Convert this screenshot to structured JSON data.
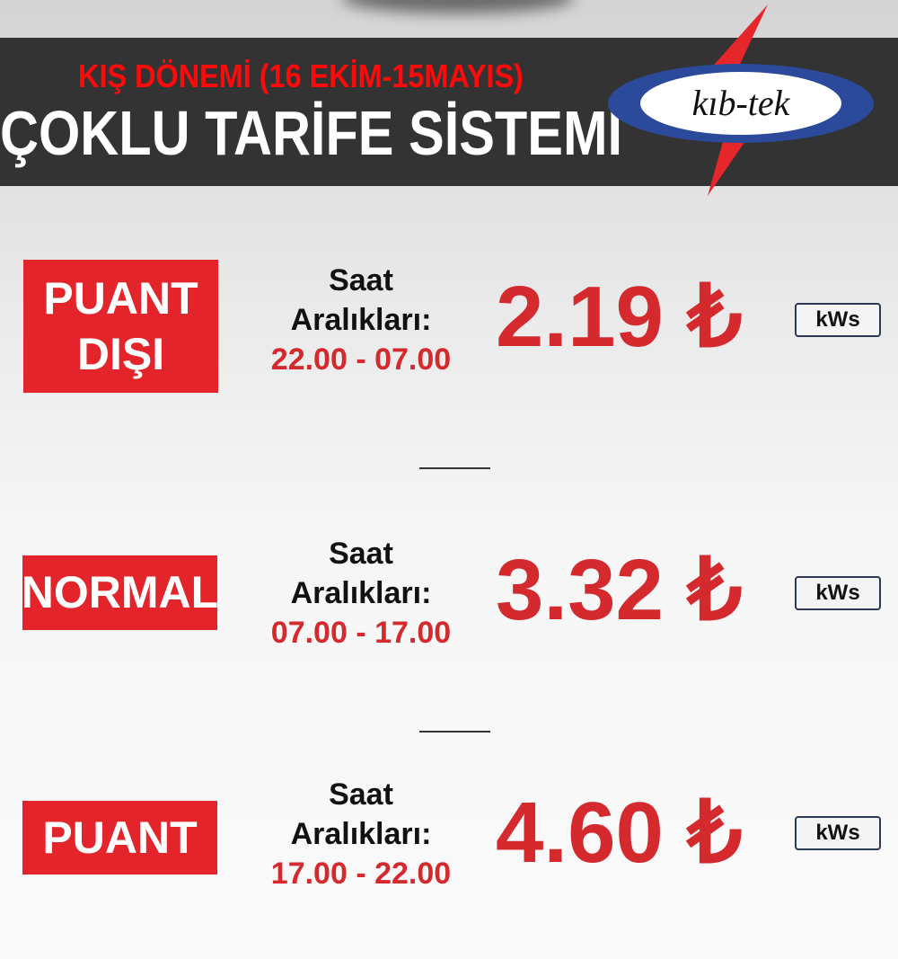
{
  "header": {
    "season": "KIŞ DÖNEMİ (16 EKİM-15MAYIS)",
    "title": "ÇOKLU TARİFE SİSTEMİ",
    "logo_text": "kıb-tek"
  },
  "colors": {
    "accent_red": "#e3242b",
    "header_bg": "#333333",
    "logo_blue": "#2b4a9c"
  },
  "tariffs": [
    {
      "label_line1": "PUANT",
      "label_line2": "DIŞI",
      "saat": "Saat",
      "araliklar": "Aralıkları:",
      "time": "22.00 - 07.00",
      "price": "2.19 ₺",
      "unit": "kWs"
    },
    {
      "label_line1": "NORMAL",
      "saat": "Saat",
      "araliklar": "Aralıkları:",
      "time": "07.00 - 17.00",
      "price": "3.32 ₺",
      "unit": "kWs"
    },
    {
      "label_line1": "PUANT",
      "saat": "Saat",
      "araliklar": "Aralıkları:",
      "time": "17.00 - 22.00",
      "price": "4.60 ₺",
      "unit": "kWs"
    }
  ]
}
